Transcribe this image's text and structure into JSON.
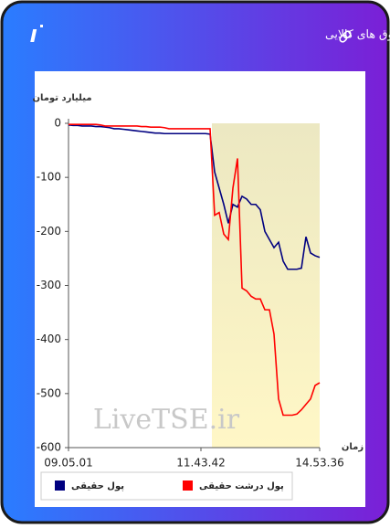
{
  "chart_data": {
    "type": "line",
    "title": "ورود و خروج پول حقیقی و پول درشت حقیقی به صندوق های کالایی",
    "ylabel": "میلیارد تومان",
    "xlabel": "زمان",
    "watermark": "LiveTSE.ir",
    "categories": [
      "09.05.01",
      null,
      null,
      null,
      null,
      null,
      null,
      null,
      null,
      null,
      null,
      null,
      null,
      null,
      null,
      null,
      null,
      null,
      null,
      null,
      null,
      null,
      null,
      null,
      null,
      null,
      null,
      null,
      null,
      "11.43.42",
      null,
      null,
      null,
      null,
      null,
      null,
      null,
      null,
      null,
      null,
      null,
      null,
      null,
      null,
      null,
      null,
      null,
      null,
      null,
      null,
      null,
      null,
      null,
      null,
      null,
      "14.53.36"
    ],
    "series": [
      {
        "name": "پول حقیقی",
        "color": "#000080",
        "values": [
          -3,
          -4,
          -4,
          -5,
          -5,
          -5,
          -6,
          -6,
          -7,
          -8,
          -10,
          -10,
          -11,
          -12,
          -13,
          -14,
          -15,
          -16,
          -17,
          -18,
          -18,
          -19,
          -19,
          -19,
          -19,
          -19,
          -19,
          -19,
          -19,
          -19,
          -19,
          -20,
          -90,
          -120,
          -150,
          -185,
          -150,
          -155,
          -135,
          -140,
          -150,
          -150,
          -160,
          -200,
          -215,
          -230,
          -220,
          -255,
          -270,
          -270,
          -270,
          -268,
          -210,
          -240,
          -245,
          -248
        ]
      },
      {
        "name": "پول درشت حقیقی",
        "color": "#ff0000",
        "values": [
          -2,
          -2,
          -2,
          -2,
          -2,
          -2,
          -2,
          -3,
          -5,
          -5,
          -5,
          -5,
          -5,
          -5,
          -5,
          -5,
          -6,
          -6,
          -7,
          -7,
          -7,
          -8,
          -10,
          -10,
          -10,
          -10,
          -10,
          -10,
          -10,
          -10,
          -10,
          -10,
          -170,
          -165,
          -205,
          -215,
          -120,
          -65,
          -305,
          -310,
          -320,
          -325,
          -325,
          -345,
          -345,
          -390,
          -510,
          -540,
          -540,
          -540,
          -538,
          -530,
          -520,
          -510,
          -485,
          -480
        ]
      }
    ],
    "ylim": [
      -600,
      0
    ],
    "yticks": [
      0,
      -100,
      -200,
      -300,
      -400,
      -500,
      -600
    ],
    "grid": false
  }
}
